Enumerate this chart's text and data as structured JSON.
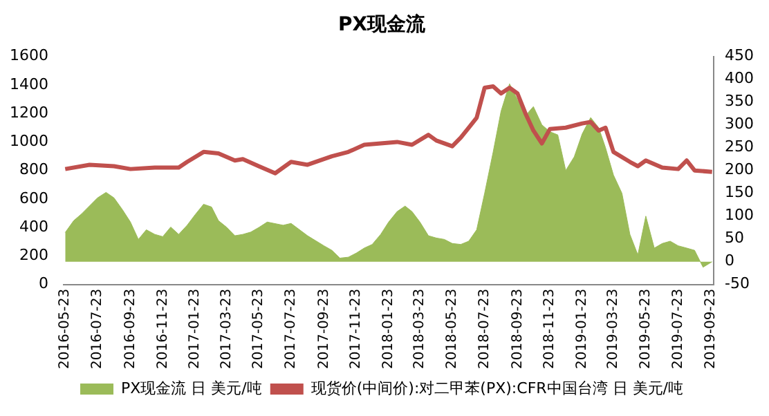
{
  "chart_data": {
    "type": "line",
    "title": "PX现金流",
    "xlim": [
      "2016-05-20",
      "2019-09-28"
    ],
    "xticks": [
      "2016-05-23",
      "2016-07-23",
      "2016-09-23",
      "2016-11-23",
      "2017-01-23",
      "2017-03-23",
      "2017-05-23",
      "2017-07-23",
      "2017-09-23",
      "2017-11-23",
      "2018-01-23",
      "2018-03-23",
      "2018-05-23",
      "2018-07-23",
      "2018-09-23",
      "2018-11-23",
      "2019-01-23",
      "2019-03-23",
      "2019-05-23",
      "2019-07-23",
      "2019-09-23"
    ],
    "ylim": [
      0,
      1600
    ],
    "yticks": [
      0,
      200,
      400,
      600,
      800,
      1000,
      1200,
      1400,
      1600
    ],
    "y2lim": [
      -50,
      450
    ],
    "y2ticks": [
      -50,
      0,
      50,
      100,
      150,
      200,
      250,
      300,
      350,
      400,
      450
    ],
    "grid": false,
    "legend": "bottom",
    "series": [
      {
        "name": "PX现金流 日 美元/吨",
        "type": "area",
        "axis": "y2",
        "color": "#9bbb59",
        "x": [
          "2016-05-23",
          "2016-06-08",
          "2016-06-23",
          "2016-07-23",
          "2016-08-08",
          "2016-08-23",
          "2016-09-08",
          "2016-09-23",
          "2016-10-08",
          "2016-10-23",
          "2016-11-08",
          "2016-11-23",
          "2016-12-08",
          "2016-12-23",
          "2017-01-08",
          "2017-01-23",
          "2017-02-08",
          "2017-02-23",
          "2017-03-08",
          "2017-03-23",
          "2017-04-08",
          "2017-04-23",
          "2017-05-08",
          "2017-05-23",
          "2017-06-08",
          "2017-07-08",
          "2017-07-23",
          "2017-08-23",
          "2017-09-23",
          "2017-10-08",
          "2017-10-23",
          "2017-11-08",
          "2017-11-23",
          "2017-12-08",
          "2017-12-23",
          "2018-01-08",
          "2018-01-23",
          "2018-02-08",
          "2018-02-23",
          "2018-03-08",
          "2018-03-23",
          "2018-04-08",
          "2018-04-23",
          "2018-05-08",
          "2018-05-23",
          "2018-06-08",
          "2018-06-23",
          "2018-07-08",
          "2018-07-23",
          "2018-08-08",
          "2018-08-23",
          "2018-09-08",
          "2018-09-23",
          "2018-10-08",
          "2018-10-23",
          "2018-11-08",
          "2018-11-23",
          "2018-12-08",
          "2018-12-23",
          "2019-01-08",
          "2019-01-23",
          "2019-02-08",
          "2019-02-23",
          "2019-03-08",
          "2019-03-23",
          "2019-04-08",
          "2019-04-23",
          "2019-05-08",
          "2019-05-23",
          "2019-06-08",
          "2019-06-23",
          "2019-07-08",
          "2019-07-23",
          "2019-08-08",
          "2019-08-23",
          "2019-09-08",
          "2019-09-25"
        ],
        "values": [
          64,
          90,
          105,
          140,
          152,
          140,
          114,
          87,
          49,
          70,
          60,
          55,
          76,
          60,
          80,
          103,
          126,
          120,
          90,
          76,
          57,
          60,
          65,
          75,
          87,
          80,
          84,
          57,
          35,
          25,
          8,
          10,
          19,
          30,
          38,
          60,
          87,
          110,
          122,
          110,
          87,
          57,
          52,
          49,
          40,
          38,
          45,
          70,
          150,
          240,
          330,
          390,
          355,
          320,
          340,
          300,
          285,
          278,
          200,
          230,
          280,
          316,
          294,
          250,
          190,
          150,
          60,
          15,
          100,
          30,
          40,
          45,
          35,
          30,
          25,
          -12,
          0
        ]
      },
      {
        "name": "现货价(中间价):对二甲苯(PX):CFR中国台湾 日 美元/吨",
        "color": "#c0504d",
        "x": [
          "2016-05-23",
          "2016-07-08",
          "2016-08-23",
          "2016-09-23",
          "2016-11-08",
          "2016-12-23",
          "2017-01-08",
          "2017-02-08",
          "2017-03-08",
          "2017-04-08",
          "2017-04-23",
          "2017-05-23",
          "2017-06-23",
          "2017-07-23",
          "2017-08-23",
          "2017-10-08",
          "2017-11-08",
          "2017-12-08",
          "2018-01-08",
          "2018-02-08",
          "2018-03-08",
          "2018-04-08",
          "2018-04-23",
          "2018-05-23",
          "2018-06-08",
          "2018-06-23",
          "2018-07-08",
          "2018-07-23",
          "2018-08-08",
          "2018-08-23",
          "2018-09-08",
          "2018-09-23",
          "2018-10-08",
          "2018-10-23",
          "2018-11-08",
          "2018-11-23",
          "2018-12-23",
          "2019-01-23",
          "2019-02-08",
          "2019-02-23",
          "2019-03-08",
          "2019-03-23",
          "2019-04-23",
          "2019-05-08",
          "2019-05-23",
          "2019-06-23",
          "2019-07-23",
          "2019-08-08",
          "2019-08-23",
          "2019-09-25"
        ],
        "values": [
          810,
          840,
          830,
          810,
          820,
          820,
          860,
          930,
          920,
          870,
          880,
          830,
          780,
          860,
          840,
          900,
          930,
          980,
          990,
          1000,
          980,
          1050,
          1010,
          970,
          1030,
          1100,
          1170,
          1380,
          1390,
          1340,
          1380,
          1340,
          1200,
          1080,
          990,
          1090,
          1100,
          1130,
          1140,
          1080,
          1100,
          930,
          860,
          830,
          870,
          820,
          810,
          870,
          800,
          790
        ]
      }
    ]
  }
}
